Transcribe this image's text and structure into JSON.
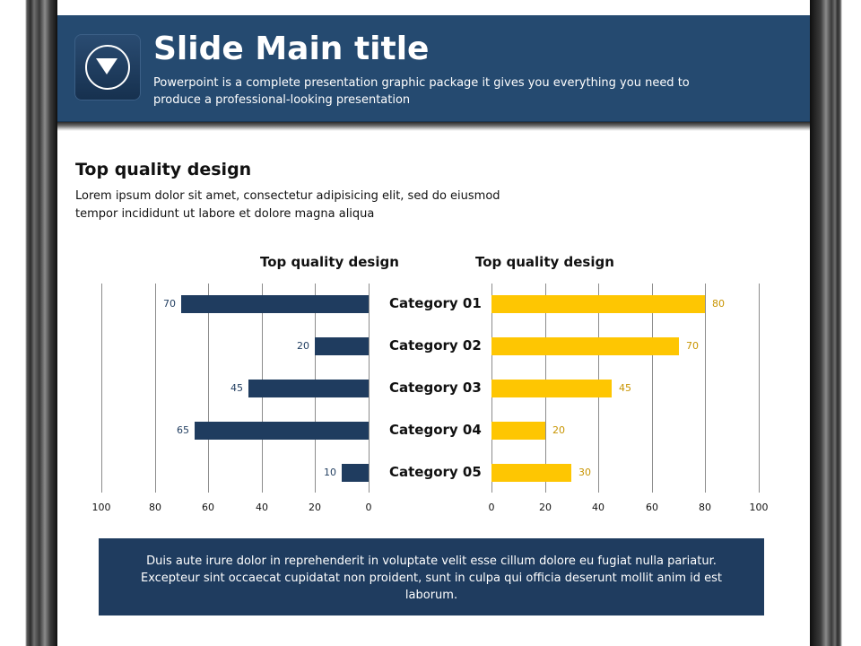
{
  "header": {
    "title": "Slide Main title",
    "subtitle": "Powerpoint is a complete presentation graphic package it gives you everything you need to produce a professional-looking presentation",
    "logo_icon": "down-arrow-circle-icon"
  },
  "section": {
    "title": "Top quality design",
    "text": "Lorem ipsum dolor sit amet, consectetur adipisicing elit, sed do eiusmod tempor incididunt ut labore et dolore magna aliqua"
  },
  "footer": {
    "text": "Duis aute irure dolor in reprehenderit in voluptate velit esse cillum dolore eu fugiat nulla pariatur. Excepteur sint occaecat cupidatat non proident, sunt in culpa qui officia deserunt mollit anim id est laborum."
  },
  "colors": {
    "header": "#254a70",
    "left_series": "#1f3c5f",
    "right_series": "#fec602"
  },
  "chart_data": [
    {
      "type": "bar",
      "orientation": "horizontal",
      "direction": "right-to-left",
      "title": "Top quality design",
      "categories": [
        "Category 01",
        "Category 02",
        "Category 03",
        "Category 04",
        "Category 05"
      ],
      "values": [
        70,
        20,
        45,
        65,
        10
      ],
      "xlim": [
        0,
        100
      ],
      "xticks": [
        "0",
        "20",
        "40",
        "60",
        "80",
        "100"
      ],
      "grid": true
    },
    {
      "type": "bar",
      "orientation": "horizontal",
      "direction": "left-to-right",
      "title": "Top quality design",
      "categories": [
        "Category 01",
        "Category 02",
        "Category 03",
        "Category 04",
        "Category 05"
      ],
      "values": [
        80,
        70,
        45,
        20,
        30
      ],
      "xlim": [
        0,
        100
      ],
      "xticks": [
        "0",
        "20",
        "40",
        "60",
        "80",
        "100"
      ],
      "grid": true
    }
  ]
}
